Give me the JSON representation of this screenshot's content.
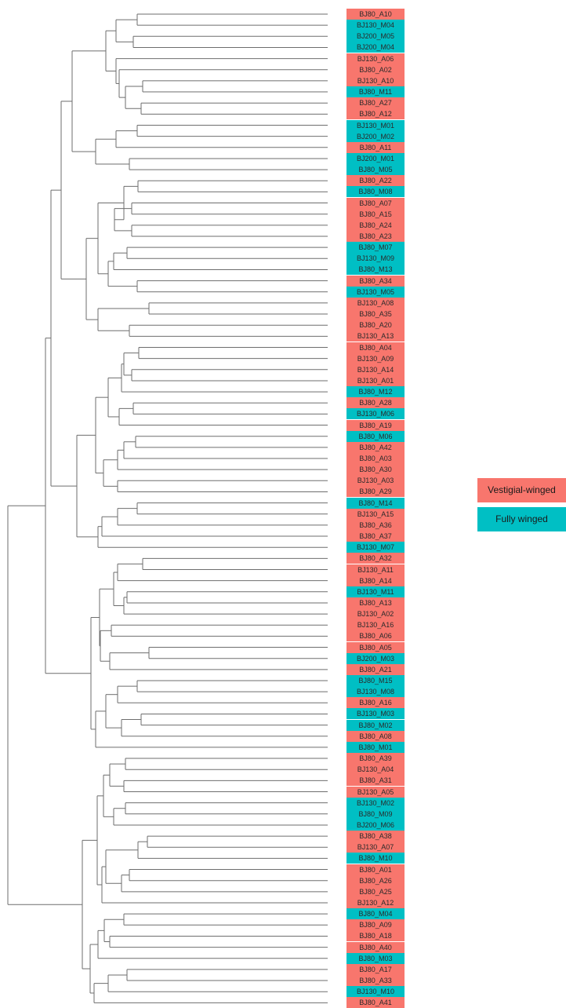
{
  "colors": {
    "vestigial": "#F8766D",
    "fully_winged": "#00BFC4",
    "branch": "#6e6e6e"
  },
  "legend": [
    {
      "label": "Vestigial-winged",
      "group": "vestigial"
    },
    {
      "label": "Fully winged",
      "group": "fully_winged"
    }
  ],
  "leaves": [
    {
      "label": "BJ80_A10",
      "group": "vestigial"
    },
    {
      "label": "BJ130_M04",
      "group": "fully_winged"
    },
    {
      "label": "BJ200_M05",
      "group": "fully_winged"
    },
    {
      "label": "BJ200_M04",
      "group": "fully_winged"
    },
    {
      "label": "BJ130_A06",
      "group": "vestigial"
    },
    {
      "label": "BJ80_A02",
      "group": "vestigial"
    },
    {
      "label": "BJ130_A10",
      "group": "vestigial"
    },
    {
      "label": "BJ80_M11",
      "group": "fully_winged"
    },
    {
      "label": "BJ80_A27",
      "group": "vestigial"
    },
    {
      "label": "BJ80_A12",
      "group": "vestigial"
    },
    {
      "label": "BJ130_M01",
      "group": "fully_winged"
    },
    {
      "label": "BJ200_M02",
      "group": "fully_winged"
    },
    {
      "label": "BJ80_A11",
      "group": "vestigial"
    },
    {
      "label": "BJ200_M01",
      "group": "fully_winged"
    },
    {
      "label": "BJ80_M05",
      "group": "fully_winged"
    },
    {
      "label": "BJ80_A22",
      "group": "vestigial"
    },
    {
      "label": "BJ80_M08",
      "group": "fully_winged"
    },
    {
      "label": "BJ80_A07",
      "group": "vestigial"
    },
    {
      "label": "BJ80_A15",
      "group": "vestigial"
    },
    {
      "label": "BJ80_A24",
      "group": "vestigial"
    },
    {
      "label": "BJ80_A23",
      "group": "vestigial"
    },
    {
      "label": "BJ80_M07",
      "group": "fully_winged"
    },
    {
      "label": "BJ130_M09",
      "group": "fully_winged"
    },
    {
      "label": "BJ80_M13",
      "group": "fully_winged"
    },
    {
      "label": "BJ80_A34",
      "group": "vestigial"
    },
    {
      "label": "BJ130_M05",
      "group": "fully_winged"
    },
    {
      "label": "BJ130_A08",
      "group": "vestigial"
    },
    {
      "label": "BJ80_A35",
      "group": "vestigial"
    },
    {
      "label": "BJ80_A20",
      "group": "vestigial"
    },
    {
      "label": "BJ130_A13",
      "group": "vestigial"
    },
    {
      "label": "BJ80_A04",
      "group": "vestigial"
    },
    {
      "label": "BJ130_A09",
      "group": "vestigial"
    },
    {
      "label": "BJ130_A14",
      "group": "vestigial"
    },
    {
      "label": "BJ130_A01",
      "group": "vestigial"
    },
    {
      "label": "BJ80_M12",
      "group": "fully_winged"
    },
    {
      "label": "BJ80_A28",
      "group": "vestigial"
    },
    {
      "label": "BJ130_M06",
      "group": "fully_winged"
    },
    {
      "label": "BJ80_A19",
      "group": "vestigial"
    },
    {
      "label": "BJ80_M06",
      "group": "fully_winged"
    },
    {
      "label": "BJ80_A42",
      "group": "vestigial"
    },
    {
      "label": "BJ80_A03",
      "group": "vestigial"
    },
    {
      "label": "BJ80_A30",
      "group": "vestigial"
    },
    {
      "label": "BJ130_A03",
      "group": "vestigial"
    },
    {
      "label": "BJ80_A29",
      "group": "vestigial"
    },
    {
      "label": "BJ80_M14",
      "group": "fully_winged"
    },
    {
      "label": "BJ130_A15",
      "group": "vestigial"
    },
    {
      "label": "BJ80_A36",
      "group": "vestigial"
    },
    {
      "label": "BJ80_A37",
      "group": "vestigial"
    },
    {
      "label": "BJ130_M07",
      "group": "fully_winged"
    },
    {
      "label": "BJ80_A32",
      "group": "vestigial"
    },
    {
      "label": "BJ130_A11",
      "group": "vestigial"
    },
    {
      "label": "BJ80_A14",
      "group": "vestigial"
    },
    {
      "label": "BJ130_M11",
      "group": "fully_winged"
    },
    {
      "label": "BJ80_A13",
      "group": "vestigial"
    },
    {
      "label": "BJ130_A02",
      "group": "vestigial"
    },
    {
      "label": "BJ130_A16",
      "group": "vestigial"
    },
    {
      "label": "BJ80_A06",
      "group": "vestigial"
    },
    {
      "label": "BJ80_A05",
      "group": "vestigial"
    },
    {
      "label": "BJ200_M03",
      "group": "fully_winged"
    },
    {
      "label": "BJ80_A21",
      "group": "vestigial"
    },
    {
      "label": "BJ80_M15",
      "group": "fully_winged"
    },
    {
      "label": "BJ130_M08",
      "group": "fully_winged"
    },
    {
      "label": "BJ80_A16",
      "group": "vestigial"
    },
    {
      "label": "BJ130_M03",
      "group": "fully_winged"
    },
    {
      "label": "BJ80_M02",
      "group": "fully_winged"
    },
    {
      "label": "BJ80_A08",
      "group": "vestigial"
    },
    {
      "label": "BJ80_M01",
      "group": "fully_winged"
    },
    {
      "label": "BJ80_A39",
      "group": "vestigial"
    },
    {
      "label": "BJ130_A04",
      "group": "vestigial"
    },
    {
      "label": "BJ80_A31",
      "group": "vestigial"
    },
    {
      "label": "BJ130_A05",
      "group": "vestigial"
    },
    {
      "label": "BJ130_M02",
      "group": "fully_winged"
    },
    {
      "label": "BJ80_M09",
      "group": "fully_winged"
    },
    {
      "label": "BJ200_M06",
      "group": "fully_winged"
    },
    {
      "label": "BJ80_A38",
      "group": "vestigial"
    },
    {
      "label": "BJ130_A07",
      "group": "vestigial"
    },
    {
      "label": "BJ80_M10",
      "group": "fully_winged"
    },
    {
      "label": "BJ80_A01",
      "group": "vestigial"
    },
    {
      "label": "BJ80_A26",
      "group": "vestigial"
    },
    {
      "label": "BJ80_A25",
      "group": "vestigial"
    },
    {
      "label": "BJ130_A12",
      "group": "vestigial"
    },
    {
      "label": "BJ80_M04",
      "group": "fully_winged"
    },
    {
      "label": "BJ80_A09",
      "group": "vestigial"
    },
    {
      "label": "BJ80_A18",
      "group": "vestigial"
    },
    {
      "label": "BJ80_A40",
      "group": "vestigial"
    },
    {
      "label": "BJ80_M03",
      "group": "fully_winged"
    },
    {
      "label": "BJ80_A17",
      "group": "vestigial"
    },
    {
      "label": "BJ80_A33",
      "group": "vestigial"
    },
    {
      "label": "BJ130_M10",
      "group": "fully_winged"
    },
    {
      "label": "BJ80_A41",
      "group": "vestigial"
    }
  ]
}
